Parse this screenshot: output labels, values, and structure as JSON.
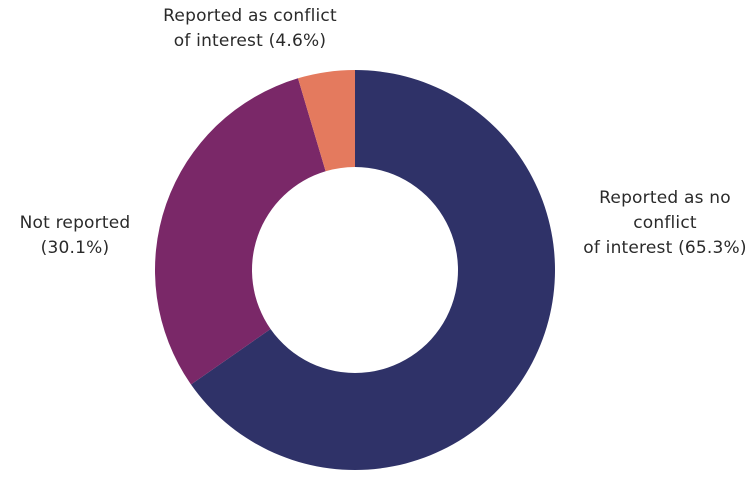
{
  "chart_data": {
    "type": "pie",
    "title": "",
    "donut": true,
    "slices": [
      {
        "label_lines": [
          "Reported as no",
          "conflict",
          "of interest (65.3%)"
        ],
        "value": 65.3,
        "color": "#2f3268"
      },
      {
        "label_lines": [
          "Not reported",
          "(30.1%)"
        ],
        "value": 30.1,
        "color": "#7a2868"
      },
      {
        "label_lines": [
          "Reported as conflict",
          "of interest (4.6%)"
        ],
        "value": 4.6,
        "color": "#e47a5e"
      }
    ],
    "start": "12 o'clock",
    "direction": "clockwise"
  }
}
